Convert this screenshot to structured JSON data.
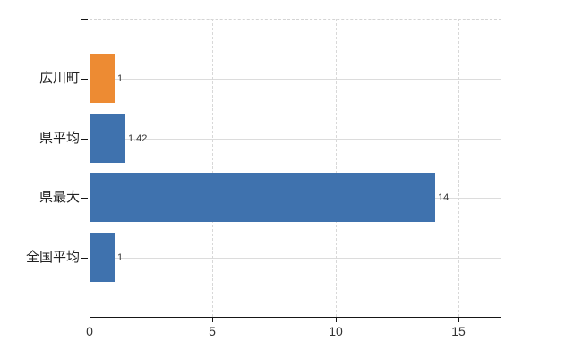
{
  "chart_data": {
    "type": "bar",
    "orientation": "horizontal",
    "title": "",
    "xlabel": "",
    "ylabel": "",
    "categories": [
      "広川町",
      "県平均",
      "県最大",
      "全国平均"
    ],
    "values": [
      1,
      1.42,
      14,
      1
    ],
    "value_labels": [
      "1",
      "1.42",
      "14",
      "1"
    ],
    "bar_colors": [
      "#ED8B33",
      "#3F72AE",
      "#3F72AE",
      "#3F72AE"
    ],
    "x_ticks": [
      0,
      5,
      10,
      15
    ],
    "x_tick_labels": [
      "0",
      "5",
      "10",
      "15"
    ],
    "xlim": [
      0,
      16.75
    ],
    "grid": "on",
    "legend": "none",
    "gridline_color": "#DCDCDC",
    "axis_color": "#161616",
    "value_label_color": "#333333",
    "category_label_color": "#222222"
  }
}
